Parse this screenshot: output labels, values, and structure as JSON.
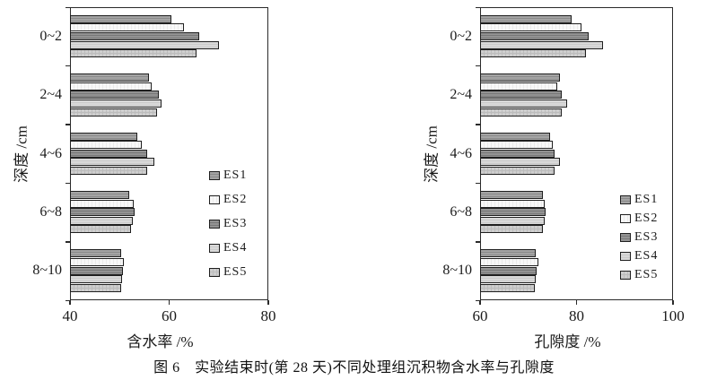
{
  "caption": "图 6　实验结束时(第 28 天)不同处理组沉积物含水率与孔隙度",
  "series_styles": [
    {
      "name": "ES1",
      "fill": "#a4a4a4",
      "stripe": "#8a8a8a",
      "pattern": "h-stripe"
    },
    {
      "name": "ES2",
      "fill": "#f8f8f8",
      "stripe": "#ebebeb",
      "pattern": "dots"
    },
    {
      "name": "ES3",
      "fill": "#939393",
      "stripe": "#787878",
      "pattern": "h-stripe"
    },
    {
      "name": "ES4",
      "fill": "#d9d9d9",
      "stripe": "#cbcbcb",
      "pattern": "h-stripe"
    },
    {
      "name": "ES5",
      "fill": "#cecece",
      "stripe": "#bcbcbc",
      "pattern": "grid"
    }
  ],
  "chart_data": [
    {
      "type": "bar",
      "orientation": "horizontal",
      "title": "",
      "xlabel": "含水率 /%",
      "ylabel": "深度 /cm",
      "categories": [
        "0~2",
        "2~4",
        "4~6",
        "6~8",
        "8~10"
      ],
      "xlim": [
        40,
        80
      ],
      "xticks": [
        40,
        60,
        80
      ],
      "grid": false,
      "legend_position": "inside-right",
      "series": [
        {
          "name": "ES1",
          "values": [
            60.5,
            56.0,
            53.5,
            52.0,
            50.3
          ]
        },
        {
          "name": "ES2",
          "values": [
            63.0,
            56.5,
            54.5,
            52.8,
            50.8
          ]
        },
        {
          "name": "ES3",
          "values": [
            66.0,
            58.0,
            55.5,
            53.0,
            50.6
          ]
        },
        {
          "name": "ES4",
          "values": [
            70.0,
            58.5,
            57.0,
            52.6,
            50.5
          ]
        },
        {
          "name": "ES5",
          "values": [
            65.5,
            57.5,
            55.5,
            52.3,
            50.3
          ]
        }
      ]
    },
    {
      "type": "bar",
      "orientation": "horizontal",
      "title": "",
      "xlabel": "孔隙度 /%",
      "ylabel": "深度 /cm",
      "categories": [
        "0~2",
        "2~4",
        "4~6",
        "6~8",
        "8~10"
      ],
      "xlim": [
        60,
        100
      ],
      "xticks": [
        60,
        80,
        100
      ],
      "grid": false,
      "legend_position": "inside-right",
      "series": [
        {
          "name": "ES1",
          "values": [
            79.0,
            76.5,
            74.5,
            73.0,
            71.5
          ]
        },
        {
          "name": "ES2",
          "values": [
            81.0,
            76.0,
            75.0,
            73.4,
            72.0
          ]
        },
        {
          "name": "ES3",
          "values": [
            82.5,
            77.0,
            75.5,
            73.6,
            71.7
          ]
        },
        {
          "name": "ES4",
          "values": [
            85.5,
            78.0,
            76.5,
            73.4,
            71.5
          ]
        },
        {
          "name": "ES5",
          "values": [
            82.0,
            77.0,
            75.5,
            73.0,
            71.3
          ]
        }
      ]
    }
  ]
}
